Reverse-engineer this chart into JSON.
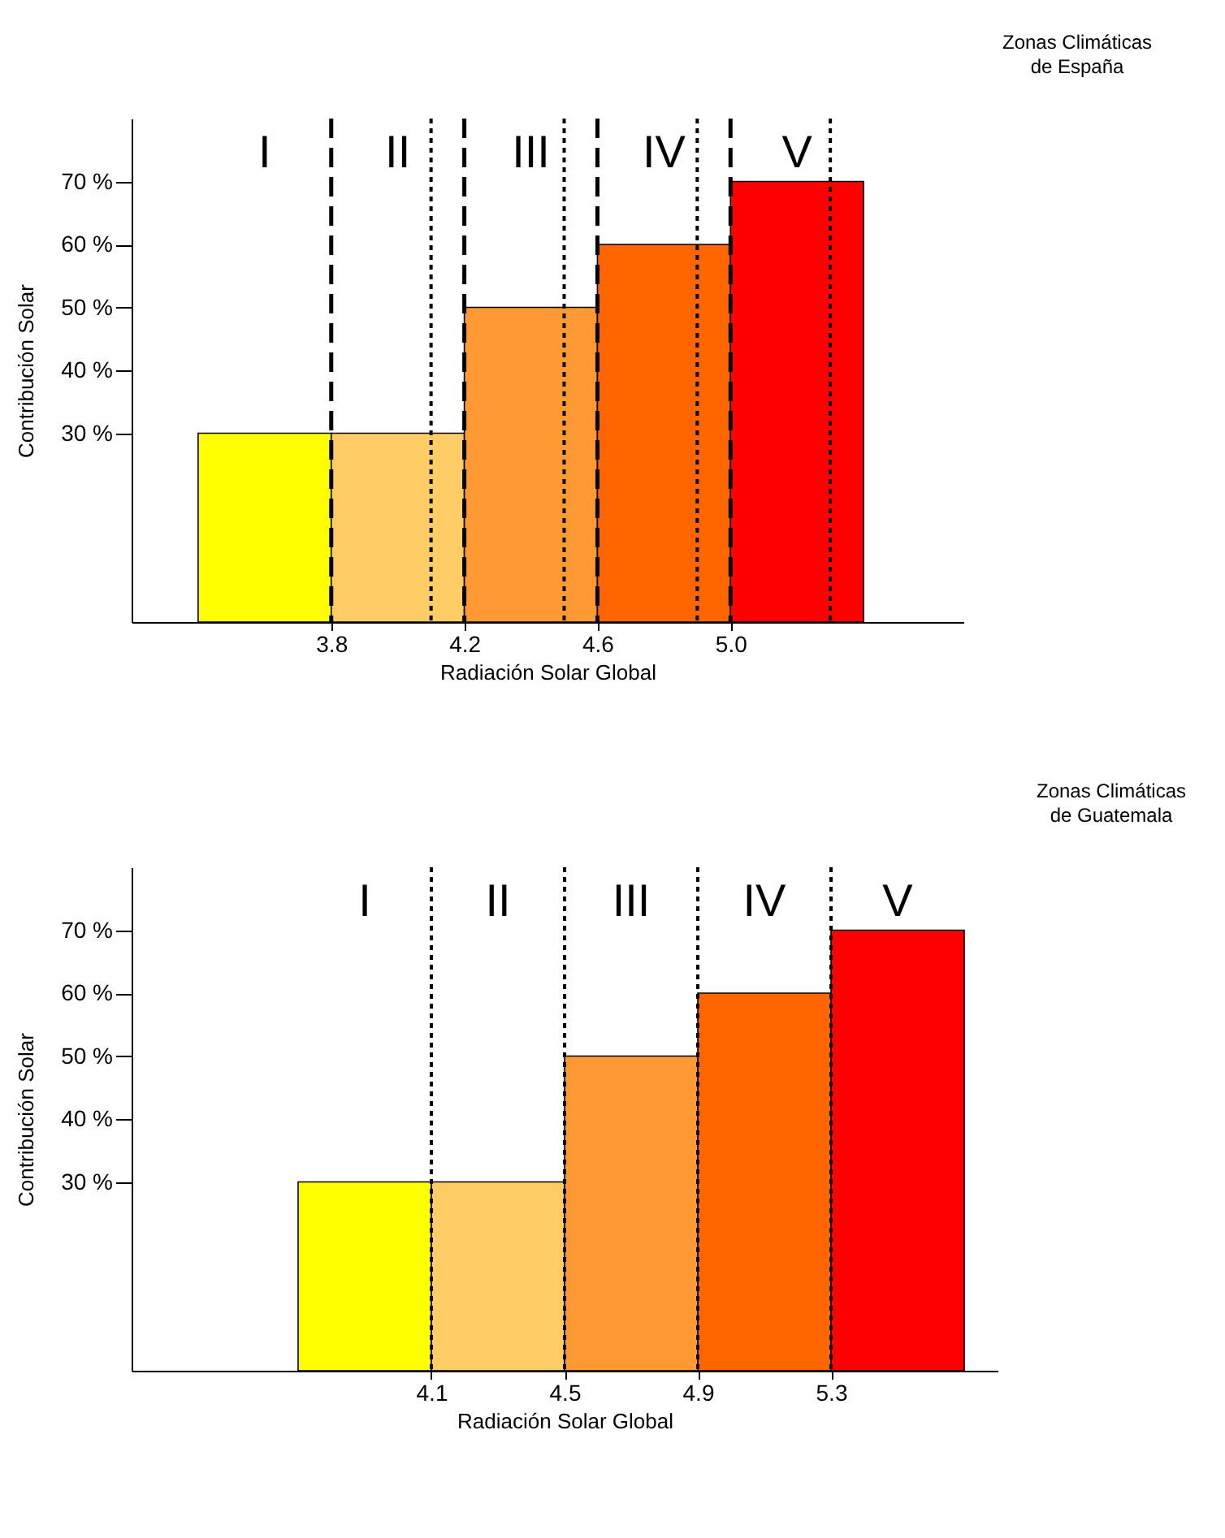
{
  "chart_data": [
    {
      "type": "histogram",
      "xlabel": "Radiación Solar Global",
      "ylabel": "Contribución Solar",
      "bins": [
        3.4,
        3.8,
        4.2,
        4.6,
        5.0,
        5.4
      ],
      "values": [
        30,
        30,
        50,
        60,
        70
      ],
      "colors": [
        "#ffff00",
        "#ffcc66",
        "#ff9933",
        "#ff6600",
        "#ff0000"
      ],
      "xlim": [
        3.2,
        5.7
      ],
      "xticks": [
        {
          "value": 3.8,
          "label": "3.8"
        },
        {
          "value": 4.2,
          "label": "4.2"
        },
        {
          "value": 4.6,
          "label": "4.6"
        },
        {
          "value": 5.0,
          "label": "5.0"
        }
      ],
      "ylim": [
        0,
        80
      ],
      "yticks": [
        {
          "value": 30,
          "label": "30 %"
        },
        {
          "value": 40,
          "label": "40 %"
        },
        {
          "value": 50,
          "label": "50 %"
        },
        {
          "value": 60,
          "label": "60 %"
        },
        {
          "value": 70,
          "label": "70 %"
        }
      ],
      "grid": false,
      "ref_lines": [
        {
          "axis": "x",
          "value": 3.8,
          "line_style": "dashed"
        },
        {
          "axis": "x",
          "value": 4.2,
          "line_style": "dashed"
        },
        {
          "axis": "x",
          "value": 4.6,
          "line_style": "dashed"
        },
        {
          "axis": "x",
          "value": 5.0,
          "line_style": "dashed"
        },
        {
          "axis": "x",
          "value": 4.1,
          "line_style": "dotted"
        },
        {
          "axis": "x",
          "value": 4.5,
          "line_style": "dotted"
        },
        {
          "axis": "x",
          "value": 4.9,
          "line_style": "dotted"
        },
        {
          "axis": "x",
          "value": 5.3,
          "line_style": "dotted"
        }
      ],
      "annotations": [
        "Zonas Climáticas de España",
        "I",
        "II",
        "III",
        "IV",
        "V"
      ]
    },
    {
      "type": "histogram",
      "xlabel": "Radiación Solar Global",
      "ylabel": "Contribución Solar",
      "bins": [
        3.7,
        4.1,
        4.5,
        4.9,
        5.3,
        5.7
      ],
      "values": [
        30,
        30,
        50,
        60,
        70
      ],
      "colors": [
        "#ffff00",
        "#ffcc66",
        "#ff9933",
        "#ff6600",
        "#ff0000"
      ],
      "xlim": [
        3.2,
        5.8
      ],
      "xticks": [
        {
          "value": 4.1,
          "label": "4.1"
        },
        {
          "value": 4.5,
          "label": "4.5"
        },
        {
          "value": 4.9,
          "label": "4.9"
        },
        {
          "value": 5.3,
          "label": "5.3"
        }
      ],
      "ylim": [
        0,
        80
      ],
      "yticks": [
        {
          "value": 30,
          "label": "30 %"
        },
        {
          "value": 40,
          "label": "40 %"
        },
        {
          "value": 50,
          "label": "50 %"
        },
        {
          "value": 60,
          "label": "60 %"
        },
        {
          "value": 70,
          "label": "70 %"
        }
      ],
      "grid": false,
      "ref_lines": [
        {
          "axis": "x",
          "value": 4.1,
          "line_style": "dotted"
        },
        {
          "axis": "x",
          "value": 4.5,
          "line_style": "dotted"
        },
        {
          "axis": "x",
          "value": 4.9,
          "line_style": "dotted"
        },
        {
          "axis": "x",
          "value": 5.3,
          "line_style": "dotted"
        }
      ],
      "annotations": [
        "Zonas Climáticas de Guatemala",
        "I",
        "II",
        "III",
        "IV",
        "V"
      ]
    }
  ]
}
